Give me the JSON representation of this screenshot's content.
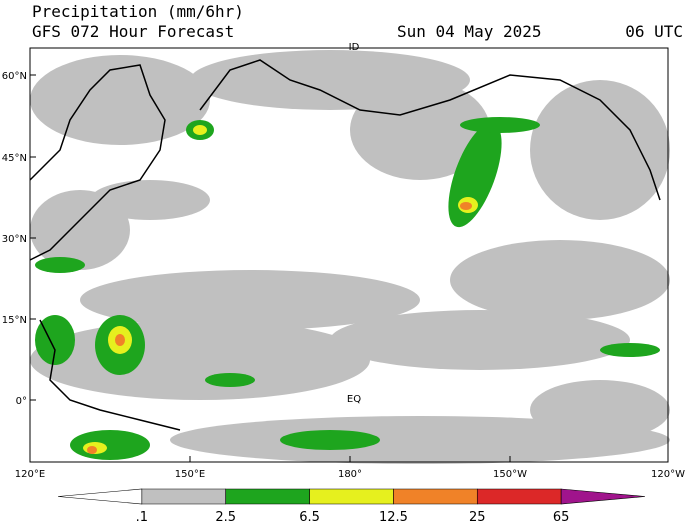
{
  "header": {
    "title": "Precipitation (mm/6hr)",
    "subtitle": "GFS 072 Hour Forecast",
    "date": "Sun 04 May 2025",
    "time": "06 UTC"
  },
  "lat_labels": [
    "60°N",
    "45°N",
    "30°N",
    "15°N",
    "0°"
  ],
  "lon_labels": [
    "120°E",
    "150°E",
    "180°",
    "150°W",
    "120°W"
  ],
  "map_labels": [
    "ID",
    "EQ"
  ],
  "colorbar": {
    "labels": [
      ".1",
      "2.5",
      "6.5",
      "12.5",
      "25",
      "65"
    ],
    "colors": [
      "#ffffff",
      "#c0c0c0",
      "#1ea51e",
      "#e6f01e",
      "#f08228",
      "#dc2828",
      "#a0148c"
    ]
  }
}
